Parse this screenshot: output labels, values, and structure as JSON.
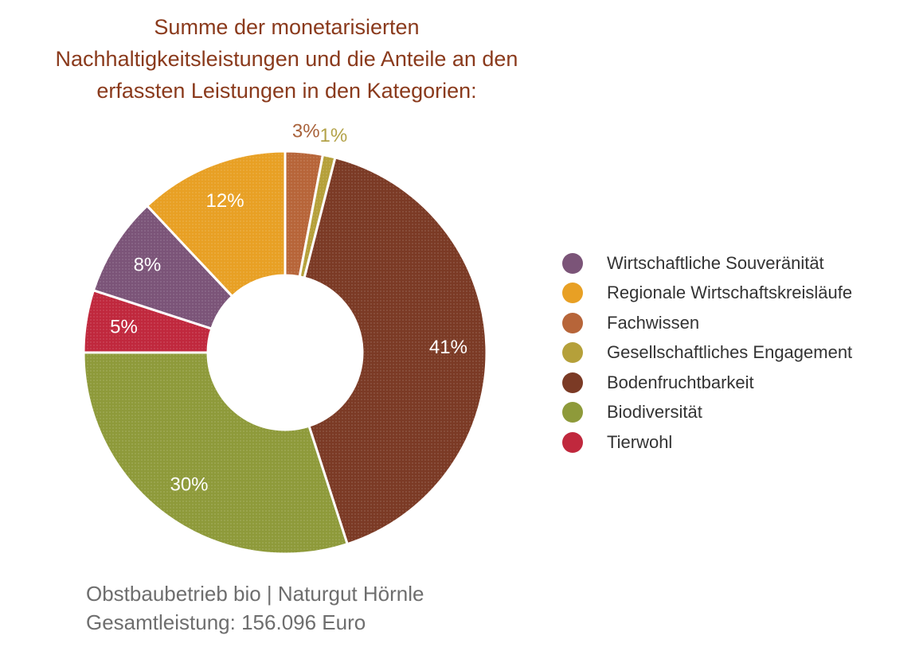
{
  "title_lines": [
    "Summe der monetarisierten",
    "Nachhaltigkeitsleistungen und die Anteile an den",
    "erfassten Leistungen in den Kategorien:"
  ],
  "footer": {
    "line1": "Obstbaubetrieb bio | Naturgut Hörnle",
    "line2": "Gesamtleistung: 156.096 Euro"
  },
  "legend": [
    {
      "label": "Wirtschaftliche Souveränität",
      "color": "#7b5478"
    },
    {
      "label": "Regionale Wirtschaftskreisläufe",
      "color": "#e8a024"
    },
    {
      "label": "Fachwissen",
      "color": "#b76539"
    },
    {
      "label": "Gesellschaftliches Engagement",
      "color": "#b5a03a"
    },
    {
      "label": "Bodenfruchtbarkeit",
      "color": "#7b3a25"
    },
    {
      "label": "Biodiversität",
      "color": "#8e9a3a"
    },
    {
      "label": "Tierwohl",
      "color": "#c0283d"
    }
  ],
  "chart_data": {
    "type": "pie",
    "donut": true,
    "slices": [
      {
        "name": "Fachwissen",
        "value": 3,
        "label": "3%",
        "color": "#b76539",
        "label_color": "#a9633c",
        "label_outside": true
      },
      {
        "name": "Gesellschaftliches Engagement",
        "value": 1,
        "label": "1%",
        "color": "#b5a03a",
        "label_color": "#b3a248",
        "label_outside": true
      },
      {
        "name": "Bodenfruchtbarkeit",
        "value": 41,
        "label": "41%",
        "color": "#7b3a25",
        "label_color": "#ffffff",
        "label_outside": false
      },
      {
        "name": "Biodiversität",
        "value": 30,
        "label": "30%",
        "color": "#8e9a3a",
        "label_color": "#ffffff",
        "label_outside": false
      },
      {
        "name": "Tierwohl",
        "value": 5,
        "label": "5%",
        "color": "#c0283d",
        "label_color": "#ffffff",
        "label_outside": false
      },
      {
        "name": "Wirtschaftliche Souveränität",
        "value": 8,
        "label": "8%",
        "color": "#7b5478",
        "label_color": "#ffffff",
        "label_outside": false
      },
      {
        "name": "Regionale Wirtschaftskreisläufe",
        "value": 12,
        "label": "12%",
        "color": "#e8a024",
        "label_color": "#ffffff",
        "label_outside": false
      }
    ]
  }
}
